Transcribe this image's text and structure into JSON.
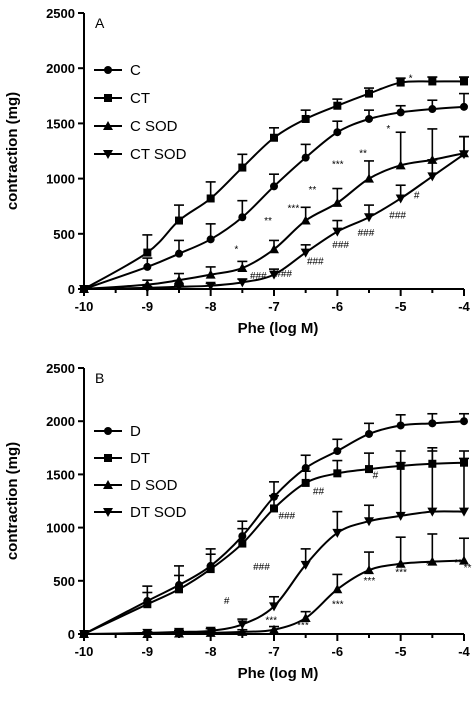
{
  "chart_data": [
    {
      "panel_label": "A",
      "type": "line",
      "xlabel": "Phe (log M)",
      "ylabel": "contraction (mg)",
      "xlim": [
        -10,
        -4
      ],
      "ylim": [
        0,
        2500
      ],
      "xticks": [
        -10,
        -9,
        -8,
        -7,
        -6,
        -5,
        -4
      ],
      "yticks": [
        0,
        500,
        1000,
        1500,
        2000,
        2500
      ],
      "x": [
        -10,
        -9,
        -8.5,
        -8,
        -7.5,
        -7,
        -6.5,
        -6,
        -5.5,
        -5,
        -4.5,
        -4
      ],
      "legend_position": "upper-left",
      "series": [
        {
          "name": "C",
          "marker": "circle",
          "values": [
            0,
            200,
            320,
            450,
            650,
            930,
            1190,
            1420,
            1540,
            1600,
            1630,
            1650
          ],
          "errors": [
            0,
            80,
            120,
            140,
            150,
            110,
            120,
            100,
            80,
            60,
            80,
            120
          ]
        },
        {
          "name": "CT",
          "marker": "square",
          "values": [
            0,
            330,
            620,
            820,
            1100,
            1370,
            1540,
            1660,
            1770,
            1870,
            1880,
            1880
          ],
          "errors": [
            0,
            160,
            140,
            150,
            120,
            90,
            80,
            60,
            50,
            40,
            40,
            40
          ]
        },
        {
          "name": "C SOD",
          "marker": "triangle-up",
          "values": [
            0,
            40,
            80,
            130,
            190,
            360,
            620,
            780,
            1000,
            1120,
            1170,
            1230
          ],
          "errors": [
            0,
            40,
            60,
            70,
            60,
            80,
            120,
            130,
            160,
            300,
            280,
            150
          ]
        },
        {
          "name": "CT SOD",
          "marker": "triangle-down",
          "values": [
            0,
            10,
            20,
            30,
            60,
            130,
            330,
            520,
            650,
            820,
            1020,
            1220
          ],
          "errors": [
            0,
            10,
            15,
            20,
            30,
            50,
            70,
            100,
            110,
            120,
            150,
            160
          ]
        }
      ],
      "annotations": [
        {
          "text": "*",
          "x": -7.6,
          "y": 330
        },
        {
          "text": "**",
          "x": -7.1,
          "y": 590
        },
        {
          "text": "***",
          "x": -6.7,
          "y": 700
        },
        {
          "text": "**",
          "x": -6.4,
          "y": 870
        },
        {
          "text": "***",
          "x": -6.0,
          "y": 1100
        },
        {
          "text": "**",
          "x": -5.6,
          "y": 1200
        },
        {
          "text": "*",
          "x": -5.2,
          "y": 1420
        },
        {
          "text": "*",
          "x": -4.85,
          "y": 1880
        },
        {
          "text": "###",
          "x": -7.25,
          "y": 90
        },
        {
          "text": "###",
          "x": -6.85,
          "y": 110
        },
        {
          "text": "###",
          "x": -6.35,
          "y": 220
        },
        {
          "text": "###",
          "x": -5.95,
          "y": 370
        },
        {
          "text": "###",
          "x": -5.55,
          "y": 480
        },
        {
          "text": "###",
          "x": -5.05,
          "y": 640
        },
        {
          "text": "#",
          "x": -4.75,
          "y": 820
        }
      ]
    },
    {
      "panel_label": "B",
      "type": "line",
      "xlabel": "Phe (log M)",
      "ylabel": "contraction (mg)",
      "xlim": [
        -10,
        -4
      ],
      "ylim": [
        0,
        2500
      ],
      "xticks": [
        -10,
        -9,
        -8,
        -7,
        -6,
        -5,
        -4
      ],
      "yticks": [
        0,
        500,
        1000,
        1500,
        2000,
        2500
      ],
      "x": [
        -10,
        -9,
        -8.5,
        -8,
        -7.5,
        -7,
        -6.5,
        -6,
        -5.5,
        -5,
        -4.5,
        -4
      ],
      "legend_position": "upper-left",
      "series": [
        {
          "name": "D",
          "marker": "circle",
          "values": [
            0,
            310,
            460,
            640,
            920,
            1290,
            1560,
            1720,
            1880,
            1960,
            1980,
            2000
          ],
          "errors": [
            0,
            140,
            180,
            160,
            140,
            140,
            120,
            110,
            100,
            100,
            90,
            70
          ]
        },
        {
          "name": "DT",
          "marker": "square",
          "values": [
            0,
            280,
            420,
            610,
            850,
            1180,
            1420,
            1510,
            1550,
            1580,
            1600,
            1610
          ],
          "errors": [
            0,
            110,
            130,
            140,
            140,
            120,
            110,
            120,
            150,
            140,
            120,
            110
          ]
        },
        {
          "name": "D SOD",
          "marker": "triangle-up",
          "values": [
            0,
            0,
            5,
            10,
            20,
            40,
            150,
            420,
            600,
            660,
            680,
            690
          ],
          "errors": [
            0,
            5,
            5,
            10,
            20,
            30,
            60,
            140,
            170,
            250,
            260,
            210
          ]
        },
        {
          "name": "DT SOD",
          "marker": "triangle-down",
          "values": [
            0,
            10,
            20,
            30,
            90,
            260,
            650,
            950,
            1060,
            1110,
            1150,
            1150
          ],
          "errors": [
            0,
            10,
            15,
            20,
            50,
            90,
            150,
            200,
            150,
            500,
            600,
            500
          ]
        }
      ],
      "annotations": [
        {
          "text": "#",
          "x": -7.75,
          "y": 280
        },
        {
          "text": "###",
          "x": -7.2,
          "y": 600
        },
        {
          "text": "###",
          "x": -6.8,
          "y": 1080
        },
        {
          "text": "##",
          "x": -6.3,
          "y": 1310
        },
        {
          "text": "#",
          "x": -5.4,
          "y": 1460
        },
        {
          "text": "***",
          "x": -7.05,
          "y": 100
        },
        {
          "text": "***",
          "x": -6.55,
          "y": 50
        },
        {
          "text": "***",
          "x": -6.0,
          "y": 250
        },
        {
          "text": "***",
          "x": -5.5,
          "y": 470
        },
        {
          "text": "***",
          "x": -5.0,
          "y": 550
        },
        {
          "text": "**",
          "x": -4.55,
          "y": 620
        },
        {
          "text": "**",
          "x": -4.1,
          "y": 640
        },
        {
          "text": "**",
          "x": -3.95,
          "y": 590
        }
      ]
    }
  ]
}
